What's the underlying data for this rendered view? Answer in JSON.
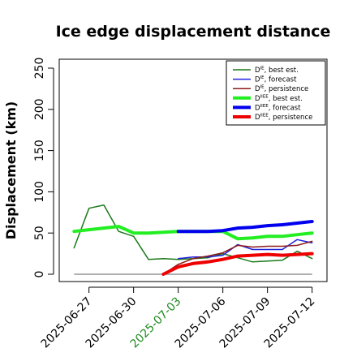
{
  "chart_data": {
    "type": "line",
    "title": "Ice edge displacement distance",
    "xlabel": "",
    "ylabel": "Displacement (km)",
    "ylim": [
      0,
      260
    ],
    "xlim": [
      "2025-06-25",
      "2025-07-13"
    ],
    "y_ticks": [
      0,
      50,
      100,
      150,
      200,
      250
    ],
    "x_ticks": [
      {
        "label": "2025-06-27",
        "date": "2025-06-27",
        "color": "#000000"
      },
      {
        "label": "2025-06-30",
        "date": "2025-06-30",
        "color": "#000000"
      },
      {
        "label": "2025-07-03",
        "date": "2025-07-03",
        "color": "#228B22"
      },
      {
        "label": "2025-07-06",
        "date": "2025-07-06",
        "color": "#000000"
      },
      {
        "label": "2025-07-09",
        "date": "2025-07-09",
        "color": "#000000"
      },
      {
        "label": "2025-07-12",
        "date": "2025-07-12",
        "color": "#000000"
      }
    ],
    "grid": false,
    "legend_position": "top-right",
    "reference_line": {
      "y": 0,
      "from": "2025-06-26",
      "to": "2025-07-12",
      "color": "#808080"
    },
    "series": [
      {
        "name": "D^IE, best est.",
        "sup": "IE",
        "rest": ", best est.",
        "color": "#1a7a1a",
        "width": 1.5,
        "x": [
          "2025-06-26",
          "2025-06-27",
          "2025-06-28",
          "2025-06-29",
          "2025-06-30",
          "2025-07-01",
          "2025-07-02",
          "2025-07-03",
          "2025-07-04",
          "2025-07-05",
          "2025-07-06",
          "2025-07-07",
          "2025-07-08",
          "2025-07-09",
          "2025-07-10",
          "2025-07-11",
          "2025-07-12"
        ],
        "y": [
          32,
          80,
          84,
          52,
          46,
          18,
          19,
          18,
          19,
          20,
          25,
          20,
          15,
          16,
          17,
          28,
          19
        ]
      },
      {
        "name": "D^IE, forecast",
        "sup": "IE",
        "rest": ", forecast",
        "color": "#2020e0",
        "width": 1.5,
        "x": [
          "2025-07-03",
          "2025-07-04",
          "2025-07-05",
          "2025-07-06",
          "2025-07-07",
          "2025-07-08",
          "2025-07-09",
          "2025-07-10",
          "2025-07-11",
          "2025-07-12"
        ],
        "y": [
          19,
          21,
          21,
          23,
          36,
          30,
          30,
          30,
          42,
          38
        ]
      },
      {
        "name": "D^IE, persistence",
        "sup": "IE",
        "rest": ", persistence",
        "color": "#8b1a1a",
        "width": 1.5,
        "x": [
          "2025-07-02",
          "2025-07-03",
          "2025-07-04",
          "2025-07-05",
          "2025-07-06",
          "2025-07-07",
          "2025-07-08",
          "2025-07-09",
          "2025-07-10",
          "2025-07-11",
          "2025-07-12"
        ],
        "y": [
          0,
          12,
          19,
          22,
          26,
          35,
          33,
          34,
          34,
          35,
          40
        ]
      },
      {
        "name": "D^IIEE, best est.",
        "sup": "IIEE",
        "rest": ", best est.",
        "color": "#22ee22",
        "width": 4,
        "x": [
          "2025-06-26",
          "2025-06-27",
          "2025-06-28",
          "2025-06-29",
          "2025-06-30",
          "2025-07-01",
          "2025-07-02",
          "2025-07-03",
          "2025-07-04",
          "2025-07-05",
          "2025-07-06",
          "2025-07-07",
          "2025-07-08",
          "2025-07-09",
          "2025-07-10",
          "2025-07-11",
          "2025-07-12"
        ],
        "y": [
          52,
          54,
          56,
          58,
          50,
          50,
          51,
          52,
          52,
          52,
          52,
          43,
          44,
          46,
          46,
          48,
          50
        ]
      },
      {
        "name": "D^IIEE, forecast",
        "sup": "IIEE",
        "rest": ", forecast",
        "color": "#0000ee",
        "width": 4,
        "x": [
          "2025-07-03",
          "2025-07-04",
          "2025-07-05",
          "2025-07-06",
          "2025-07-07",
          "2025-07-08",
          "2025-07-09",
          "2025-07-10",
          "2025-07-11",
          "2025-07-12"
        ],
        "y": [
          52,
          52,
          52,
          53,
          56,
          57,
          59,
          60,
          62,
          64
        ]
      },
      {
        "name": "D^IIEE, persistence",
        "sup": "IIEE",
        "rest": ", persistence",
        "color": "#ee0000",
        "width": 4,
        "x": [
          "2025-07-02",
          "2025-07-03",
          "2025-07-04",
          "2025-07-05",
          "2025-07-06",
          "2025-07-07",
          "2025-07-08",
          "2025-07-09",
          "2025-07-10",
          "2025-07-11",
          "2025-07-12"
        ],
        "y": [
          0,
          9,
          13,
          15,
          18,
          22,
          23,
          24,
          23,
          24,
          25
        ]
      }
    ]
  }
}
